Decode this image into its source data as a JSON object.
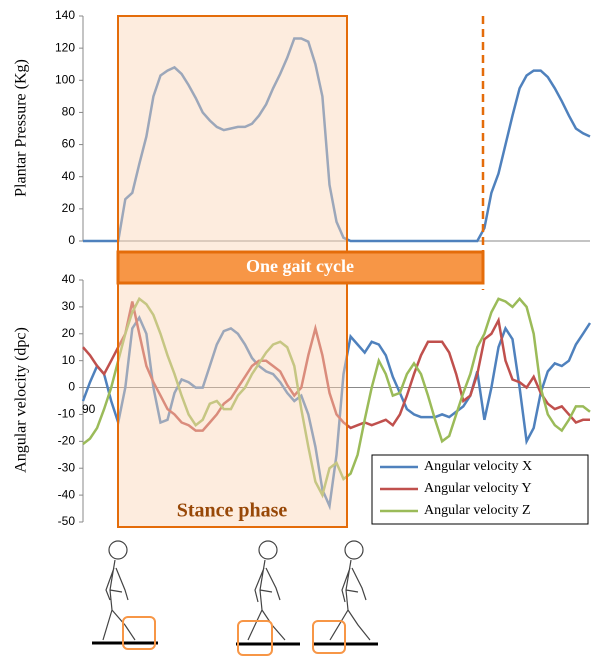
{
  "chart_data": [
    {
      "type": "line",
      "y_label": "Plantar Pressure (Kg)",
      "color": "#4f81bd",
      "values": [
        0,
        0,
        0,
        0,
        0,
        0,
        26,
        30,
        48,
        65,
        90,
        103,
        106,
        108,
        104,
        97,
        89,
        80,
        75,
        71,
        69,
        70,
        71,
        71,
        73,
        78,
        85,
        95,
        104,
        114,
        126,
        126,
        124,
        110,
        90,
        35,
        12,
        2,
        0,
        0,
        0,
        0,
        0,
        0,
        0,
        0,
        0,
        0,
        0,
        0,
        0,
        0,
        0,
        0,
        0,
        0,
        0,
        8,
        30,
        42,
        60,
        78,
        95,
        103,
        106,
        106,
        102,
        95,
        87,
        78,
        70,
        67,
        65
      ],
      "ylim": [
        0,
        140
      ],
      "yticks": [
        0,
        20,
        40,
        60,
        80,
        100,
        120,
        140
      ]
    },
    {
      "type": "line",
      "y_label": "Angular velocity (dpc)",
      "series": [
        {
          "name": "Angular velocity X",
          "color": "#4f81bd",
          "values": [
            -5,
            2,
            8,
            5,
            -5,
            -13,
            0,
            22,
            26,
            20,
            0,
            -13,
            -12,
            -2,
            3,
            2,
            0,
            0,
            8,
            16,
            21,
            22,
            20,
            16,
            11,
            8,
            6,
            5,
            2,
            -2,
            -5,
            -3,
            -10,
            -22,
            -38,
            -44,
            -25,
            5,
            19,
            16,
            13,
            17,
            16,
            12,
            4,
            -2,
            -8,
            -10,
            -11,
            -11,
            -11,
            -10,
            -11,
            -9,
            -7,
            -3,
            6,
            -12,
            0,
            15,
            22,
            18,
            0,
            -20,
            -15,
            -2,
            6,
            9,
            8,
            10,
            16,
            20,
            24
          ]
        },
        {
          "name": "Angular velocity Y",
          "color": "#c0504d",
          "values": [
            15,
            12,
            8,
            5,
            10,
            15,
            20,
            32,
            20,
            8,
            2,
            -3,
            -8,
            -10,
            -13,
            -14,
            -16,
            -16,
            -13,
            -10,
            -6,
            -4,
            0,
            4,
            8,
            10,
            10,
            8,
            6,
            1,
            -3,
            0,
            12,
            22,
            12,
            -2,
            -10,
            -13,
            -15,
            -14,
            -13,
            -14,
            -13,
            -12,
            -14,
            -10,
            -3,
            5,
            12,
            17,
            17,
            17,
            13,
            5,
            -5,
            -3,
            5,
            18,
            20,
            25,
            10,
            3,
            2,
            0,
            4,
            -2,
            -6,
            -8,
            -7,
            -10,
            -13,
            -12,
            -12
          ]
        },
        {
          "name": "Angular velocity Z",
          "color": "#9bbb59",
          "values": [
            -21,
            -19,
            -15,
            -8,
            0,
            10,
            20,
            28,
            33,
            31,
            27,
            20,
            12,
            5,
            -3,
            -10,
            -14,
            -12,
            -6,
            -5,
            -8,
            -8,
            -3,
            0,
            5,
            9,
            13,
            16,
            17,
            15,
            8,
            -8,
            -22,
            -35,
            -40,
            -30,
            -28,
            -34,
            -32,
            -25,
            -12,
            0,
            10,
            5,
            -3,
            -2,
            5,
            9,
            5,
            -3,
            -12,
            -20,
            -18,
            -10,
            -2,
            5,
            15,
            20,
            28,
            33,
            32,
            30,
            33,
            30,
            20,
            0,
            -10,
            -14,
            -16,
            -12,
            -7,
            -7,
            -9
          ]
        }
      ],
      "ylim": [
        -50,
        40
      ],
      "yticks": [
        -50,
        -40,
        -30,
        -20,
        -10,
        0,
        10,
        20,
        30,
        40
      ],
      "annotations": [
        "One gait cycle",
        "Stance phase",
        "90"
      ]
    }
  ]
}
